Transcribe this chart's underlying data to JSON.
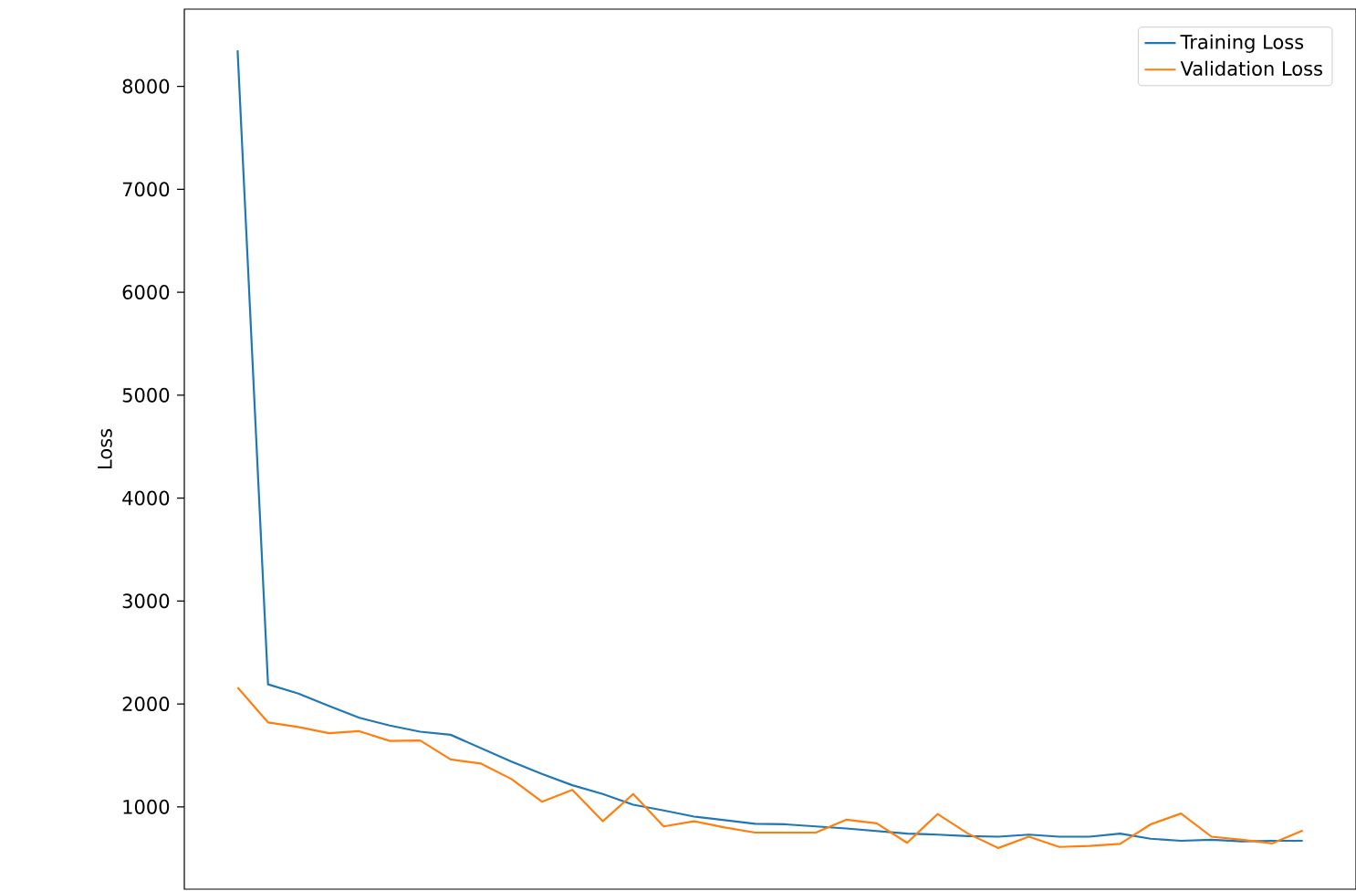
{
  "chart_data": {
    "type": "line",
    "ylabel": "Loss",
    "categories": [
      null,
      null,
      null,
      null,
      null,
      null,
      null,
      null,
      null,
      null,
      null,
      null,
      null,
      null,
      null,
      null,
      null,
      null,
      null,
      null,
      null,
      null,
      null,
      null,
      null,
      null,
      null,
      null,
      null,
      null,
      null,
      null,
      null,
      null,
      null,
      null
    ],
    "series": [
      {
        "name": "Training Loss",
        "color": "#1f77b4",
        "values": [
          8350,
          2190,
          2100,
          1980,
          1865,
          1790,
          1730,
          1700,
          1570,
          1440,
          1320,
          1210,
          1125,
          1020,
          965,
          905,
          870,
          835,
          830,
          810,
          790,
          765,
          740,
          730,
          715,
          710,
          730,
          710,
          710,
          740,
          690,
          670,
          680,
          665,
          670,
          670
        ]
      },
      {
        "name": "Validation Loss",
        "color": "#ff7f0e",
        "values": [
          2160,
          1820,
          1775,
          1715,
          1735,
          1640,
          1645,
          1460,
          1420,
          1270,
          1050,
          1165,
          860,
          1125,
          810,
          860,
          800,
          750,
          750,
          750,
          875,
          840,
          650,
          930,
          740,
          600,
          710,
          610,
          620,
          640,
          830,
          935,
          710,
          680,
          645,
          770
        ]
      }
    ],
    "ylim": [
      200,
      8750
    ],
    "yticks": [
      1000,
      2000,
      3000,
      4000,
      5000,
      6000,
      7000,
      8000
    ],
    "grid": false,
    "legend": "top right",
    "marker": "none",
    "line_style": "solid"
  }
}
